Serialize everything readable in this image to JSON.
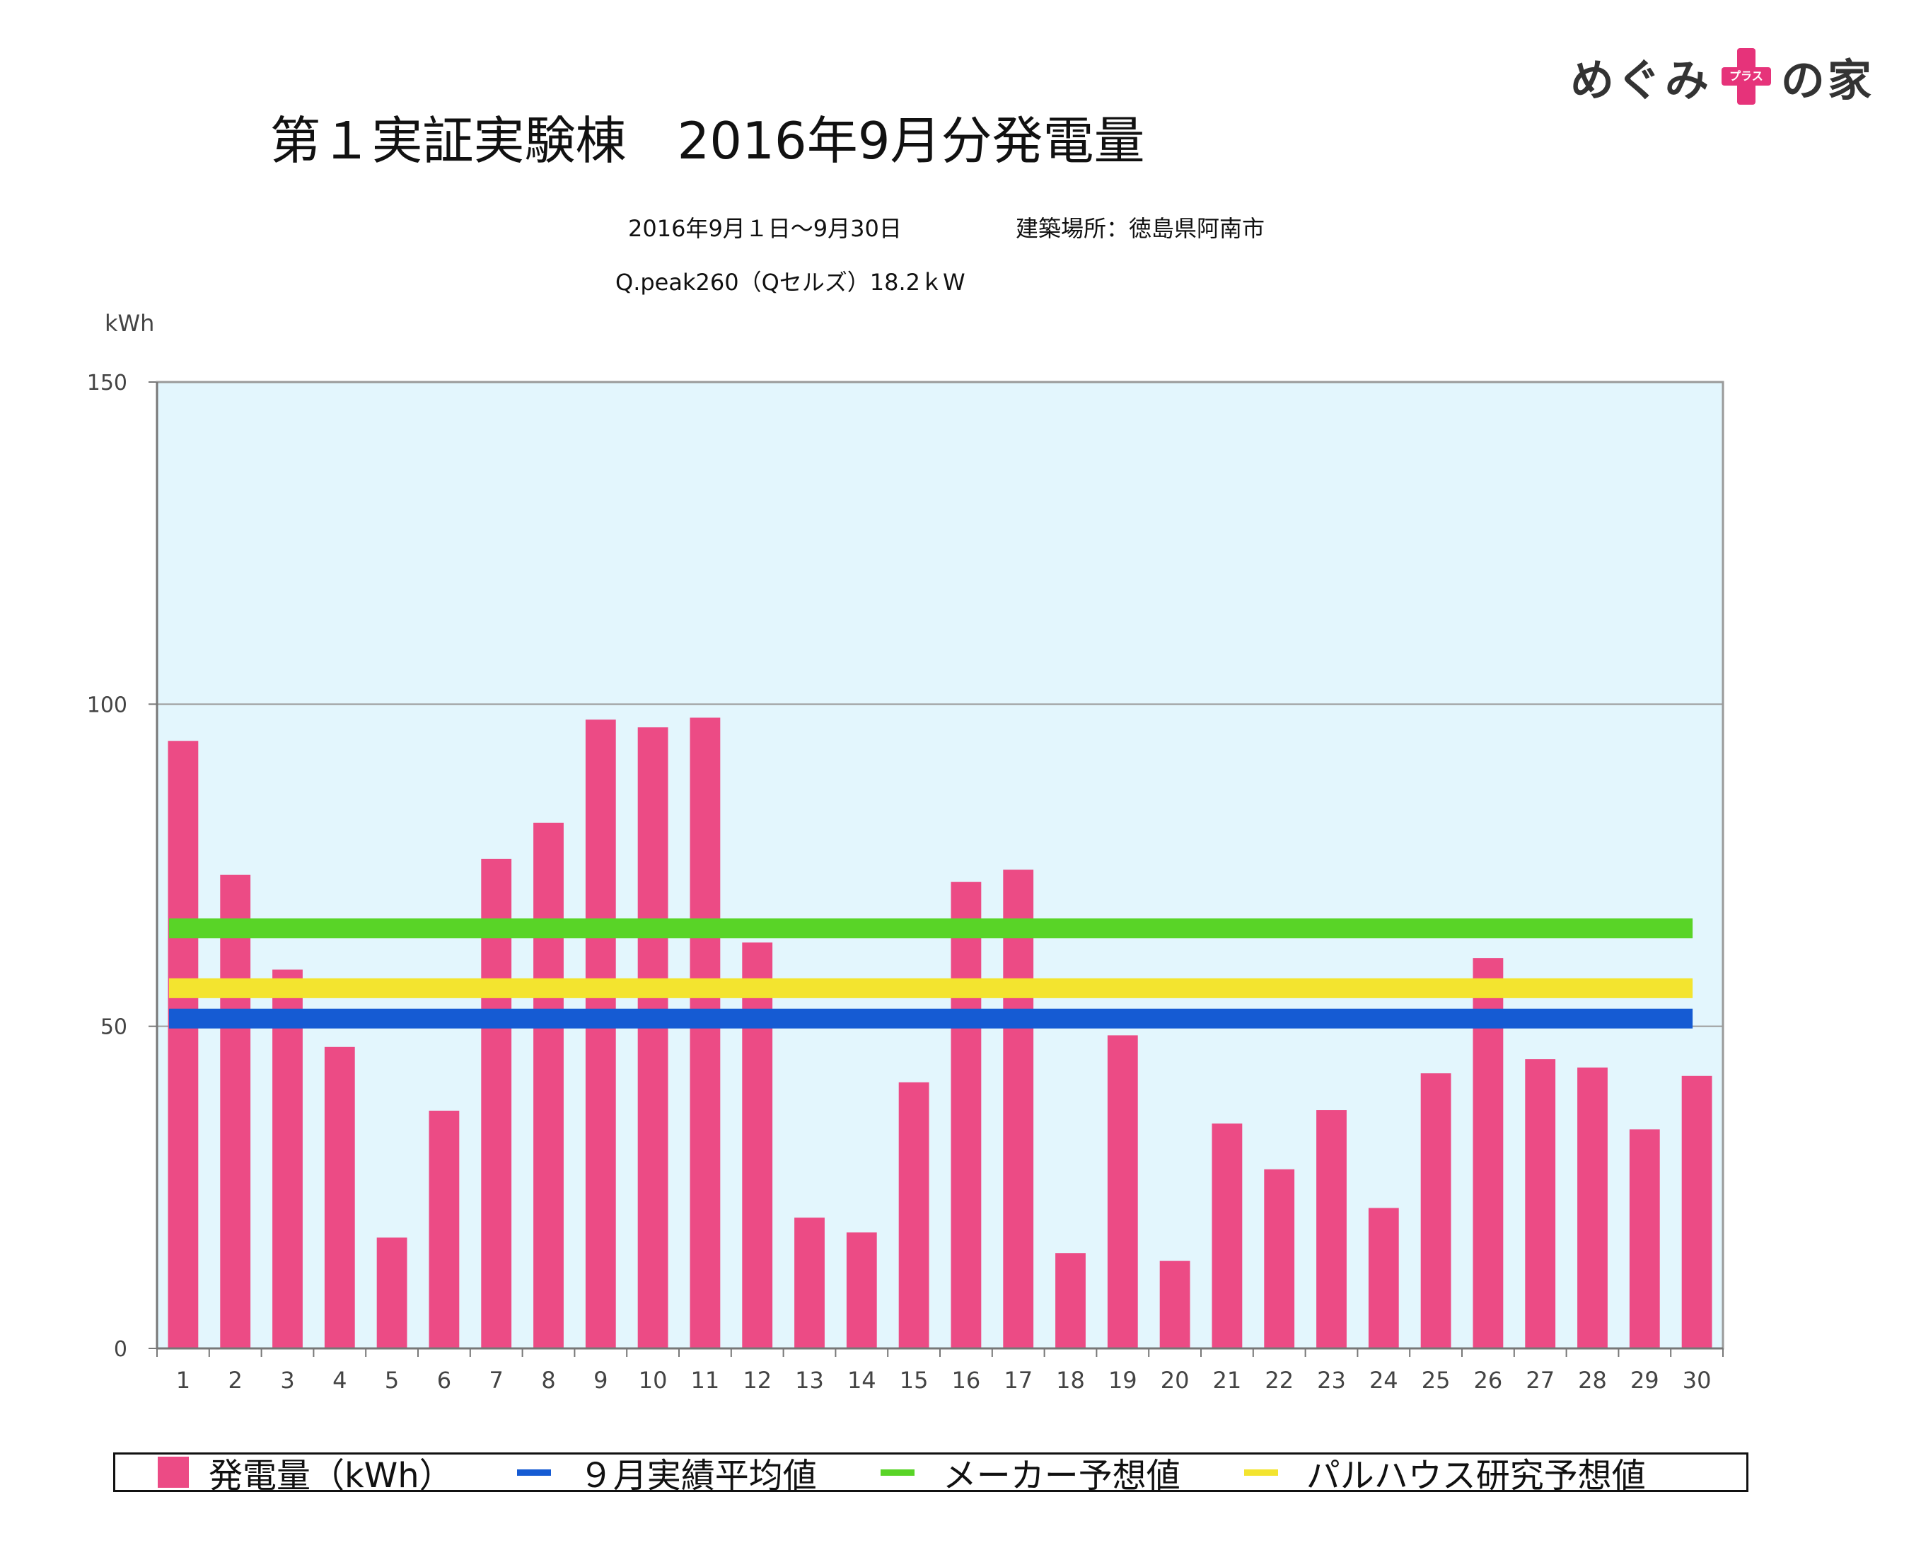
{
  "logo": {
    "left_text": "めぐみ",
    "cross_text": "プラス",
    "right_text": "の家"
  },
  "chart_data": {
    "type": "bar",
    "title": "第１実証実験棟　2016年9月分発電量",
    "period": "2016年9月１日〜9月30日",
    "location": "建築場所：徳島県阿南市",
    "system": "Q.peak260（Qセルズ）18.2ｋW",
    "ylabel": "kWh",
    "ylim": [
      0,
      150
    ],
    "yticks": [
      0,
      50,
      100,
      150
    ],
    "grid": true,
    "categories": [
      "1",
      "2",
      "3",
      "4",
      "5",
      "6",
      "7",
      "8",
      "9",
      "10",
      "11",
      "12",
      "13",
      "14",
      "15",
      "16",
      "17",
      "18",
      "19",
      "20",
      "21",
      "22",
      "23",
      "24",
      "25",
      "26",
      "27",
      "28",
      "29",
      "30"
    ],
    "series": [
      {
        "name": "発電量（kWh）",
        "kind": "bar",
        "color": "#ec4b85",
        "values": [
          94.3,
          73.5,
          58.8,
          46.8,
          17.2,
          36.9,
          76.0,
          81.6,
          97.6,
          96.4,
          97.9,
          63.0,
          20.3,
          18.0,
          41.3,
          72.4,
          74.3,
          14.8,
          48.6,
          13.6,
          34.9,
          27.8,
          37.0,
          21.8,
          42.7,
          60.6,
          44.9,
          43.6,
          34.0,
          42.3
        ]
      },
      {
        "name": "９月実績平均値",
        "kind": "hline",
        "color": "#155bd3",
        "value": 51.2
      },
      {
        "name": "メーカー予想値",
        "kind": "hline",
        "color": "#59d427",
        "value": 65.2
      },
      {
        "name": "パルハウス研究予想値",
        "kind": "hline",
        "color": "#f3e42f",
        "value": 55.9
      }
    ],
    "plot_background": "#e3f6fd",
    "legend_position": "bottom"
  }
}
